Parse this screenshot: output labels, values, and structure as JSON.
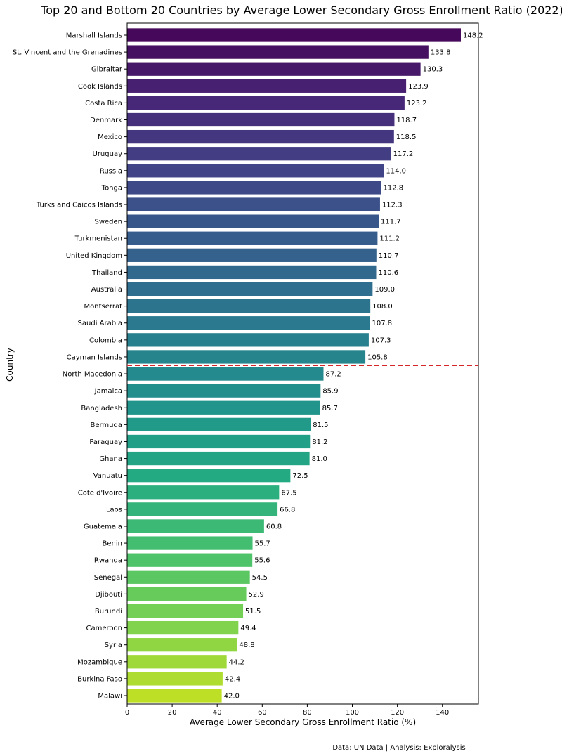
{
  "chart_data": {
    "type": "bar",
    "orientation": "horizontal",
    "title": "Top 20 and Bottom 20 Countries by Average Lower Secondary Gross Enrollment Ratio (2022)",
    "xlabel": "Average Lower Secondary Gross Enrollment Ratio (%)",
    "ylabel": "Country",
    "xlim": [
      0,
      156
    ],
    "xticks": [
      0,
      20,
      40,
      60,
      80,
      100,
      120,
      140
    ],
    "grid": false,
    "colormap": "viridis",
    "divider": {
      "after_index": 19,
      "color": "#d62728",
      "style": "dashed"
    },
    "categories": [
      "Marshall Islands",
      "St. Vincent and the Grenadines",
      "Gibraltar",
      "Cook Islands",
      "Costa Rica",
      "Denmark",
      "Mexico",
      "Uruguay",
      "Russia",
      "Tonga",
      "Turks and Caicos Islands",
      "Sweden",
      "Turkmenistan",
      "United Kingdom",
      "Thailand",
      "Australia",
      "Montserrat",
      "Saudi Arabia",
      "Colombia",
      "Cayman Islands",
      "North Macedonia",
      "Jamaica",
      "Bangladesh",
      "Bermuda",
      "Paraguay",
      "Ghana",
      "Vanuatu",
      "Cote d'Ivoire",
      "Laos",
      "Guatemala",
      "Benin",
      "Rwanda",
      "Senegal",
      "Djibouti",
      "Burundi",
      "Cameroon",
      "Syria",
      "Mozambique",
      "Burkina Faso",
      "Malawi"
    ],
    "values": [
      148.2,
      133.8,
      130.3,
      123.9,
      123.2,
      118.7,
      118.5,
      117.2,
      114.0,
      112.8,
      112.3,
      111.7,
      111.2,
      110.7,
      110.6,
      109.0,
      108.0,
      107.8,
      107.3,
      105.8,
      87.2,
      85.9,
      85.7,
      81.5,
      81.2,
      81.0,
      72.5,
      67.5,
      66.8,
      60.8,
      55.7,
      55.6,
      54.5,
      52.9,
      51.5,
      49.4,
      48.8,
      44.2,
      42.4,
      42.0
    ]
  },
  "footer": {
    "source_text": "Data: UN Data | Analysis: Exploralysis"
  }
}
